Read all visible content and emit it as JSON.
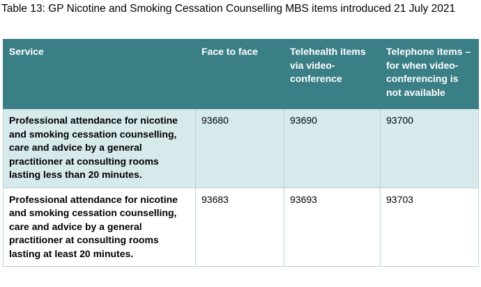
{
  "caption": "Table 13: GP Nicotine and Smoking Cessation Counselling MBS items introduced 21 July 2021",
  "table": {
    "headers": [
      "Service",
      "Face to face",
      "Telehealth items via video-conference",
      "Telephone items – for when video-conferencing is not available"
    ],
    "rows": [
      {
        "service": "Professional attendance for nicotine and smoking cessation counselling, care and advice by a general practitioner at consulting rooms lasting less than 20 minutes.",
        "face_to_face": "93680",
        "telehealth_video": "93690",
        "telephone": "93700"
      },
      {
        "service": "Professional attendance for nicotine and smoking cessation counselling, care and advice by a general practitioner at consulting rooms lasting at least 20 minutes.",
        "face_to_face": "93683",
        "telehealth_video": "93693",
        "telephone": "93703"
      }
    ]
  },
  "colors": {
    "header_bg": "#3a7f86",
    "header_text": "#ffffff",
    "shaded_row_bg": "#d6eaec",
    "border": "#b9d3d7"
  }
}
